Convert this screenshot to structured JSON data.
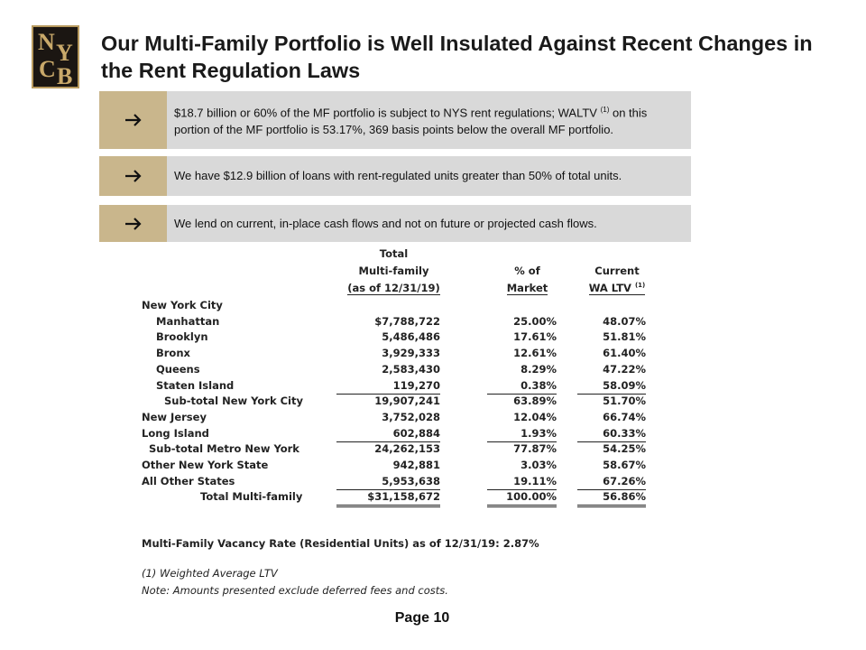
{
  "logo": [
    "N",
    "Y",
    "C",
    "B"
  ],
  "title": "Our Multi-Family Portfolio is Well Insulated Against Recent Changes in the Rent Regulation Laws",
  "bullets": [
    {
      "text": "$18.7 billion or 60% of the MF portfolio is subject to NYS rent regulations; WALTV",
      "note": "(1)",
      "rest": "on this portion of the MF portfolio is 53.17%, 369 basis points below the overall MF portfolio."
    },
    {
      "text": "We have $12.9 billion of loans with rent-regulated units greater than 50% of total units."
    },
    {
      "text": "We lend on current, in-place cash flows and not on future or projected cash flows."
    }
  ],
  "table": {
    "headers": [
      {
        "lines": [
          "Total",
          "Multi-family",
          "(as of 12/31/19)"
        ]
      },
      {
        "lines": [
          "% of",
          "Market"
        ]
      },
      {
        "lines": [
          "Current",
          "WA LTV"
        ],
        "note": "(1)"
      }
    ],
    "rows": [
      [
        "New York City"
      ],
      [
        "Manhattan",
        "$7,788,722",
        "25.00%",
        "48.07%"
      ],
      [
        "Brooklyn",
        "5,486,486",
        "17.61%",
        "51.81%"
      ],
      [
        "Bronx",
        "3,929,333",
        "12.61%",
        "61.40%"
      ],
      [
        "Queens",
        "2,583,430",
        "8.29%",
        "47.22%"
      ],
      [
        "Staten Island",
        "119,270",
        "0.38%",
        "58.09%"
      ],
      [
        "Sub-total New York City",
        "19,907,241",
        "63.89%",
        "51.70%"
      ],
      [
        "New Jersey",
        "3,752,028",
        "12.04%",
        "66.74%"
      ],
      [
        "Long Island",
        "602,884",
        "1.93%",
        "60.33%"
      ],
      [
        "Sub-total Metro New York",
        "24,262,153",
        "77.87%",
        "54.25%"
      ],
      [
        "Other New York State",
        "942,881",
        "3.03%",
        "58.67%"
      ],
      [
        "All Other States",
        "5,953,638",
        "19.11%",
        "67.26%"
      ],
      [
        "Total Multi-family",
        "$31,158,672",
        "100.00%",
        "56.86%"
      ]
    ]
  },
  "vacancy": "Multi-Family Vacancy Rate (Residential Units) as of 12/31/19:  2.87%",
  "footnotes": [
    "(1) Weighted Average LTV",
    "Note: Amounts presented exclude deferred fees and costs."
  ],
  "page": "Page 10"
}
